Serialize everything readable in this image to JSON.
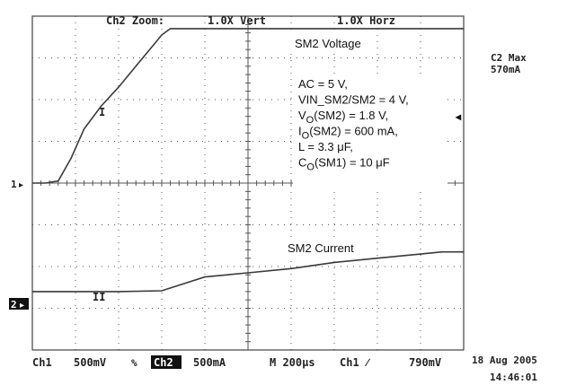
{
  "header": {
    "zoom_label": "Ch2 Zoom:",
    "vert_zoom": "1.0X Vert",
    "horz_zoom": "1.0X Horz"
  },
  "measurement": {
    "label": "C2 Max",
    "value": "570mA"
  },
  "channel_markers": {
    "ch1_marker": "1",
    "ch2_marker": "2",
    "trace1_tag": "I",
    "trace2_tag": "II",
    "trigger_arrow": "◂"
  },
  "annotations": {
    "voltage_title": "SM2 Voltage",
    "current_title": "SM2 Current",
    "conditions": [
      {
        "main": "AC = 5 V,"
      },
      {
        "main": "VIN_SM2/SM2 = 4 V,"
      },
      {
        "main": "V",
        "sub": "O",
        "rest": "(SM2) = 1.8 V,"
      },
      {
        "main": "I",
        "sub": "O",
        "rest": "(SM2) = 600 mA,"
      },
      {
        "main": "L = 3.3 μF,"
      },
      {
        "main": "C",
        "sub": "O",
        "rest": "(SM1) = 10 μF"
      }
    ]
  },
  "footer": {
    "ch1": "Ch1",
    "ch1_scale": "500mV",
    "ch1_coupling": "%",
    "ch2": "Ch2",
    "ch2_scale": "500mA",
    "timebase": "M 200μs",
    "trigger_source": "Ch1",
    "trigger_slope": "∕",
    "trigger_level": "790mV",
    "date": "18 Aug 2005",
    "time": "14:46:01"
  },
  "colors": {
    "trace": "#3a3a3a",
    "grid": "#555555",
    "marker_bg": "#111111",
    "marker_fg": "#ffffff"
  },
  "chart_data": {
    "type": "line",
    "x_divisions": 10,
    "y_divisions": 8,
    "grid": true,
    "xlim": [
      0,
      10
    ],
    "ylim": [
      0,
      8
    ],
    "series": [
      {
        "name": "SM2 Voltage",
        "x": [
          0.0,
          0.3,
          0.6,
          0.9,
          1.2,
          1.6,
          2.0,
          2.4,
          2.8,
          3.0,
          3.2,
          3.6,
          4.0,
          6.0,
          8.0,
          10.0
        ],
        "y": [
          4.0,
          4.0,
          4.05,
          4.6,
          5.3,
          5.85,
          6.3,
          6.8,
          7.3,
          7.55,
          7.7,
          7.7,
          7.7,
          7.7,
          7.7,
          7.7
        ]
      },
      {
        "name": "SM2 Current",
        "x": [
          0.0,
          1.0,
          2.0,
          3.0,
          4.0,
          5.0,
          6.0,
          7.0,
          8.0,
          9.0,
          9.5,
          10.0
        ],
        "y": [
          1.4,
          1.4,
          1.4,
          1.42,
          1.75,
          1.85,
          1.95,
          2.1,
          2.2,
          2.3,
          2.35,
          2.35
        ]
      }
    ]
  }
}
